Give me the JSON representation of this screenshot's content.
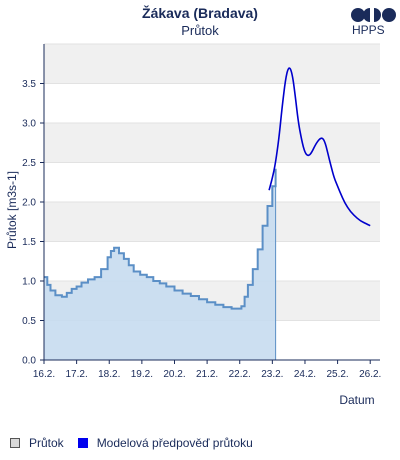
{
  "header": {
    "title": "Žákava (Bradava)",
    "subtitle": "Průtok",
    "logo_text": "HPPS"
  },
  "legend": {
    "observed_label": "Průtok",
    "forecast_label": "Modelová předpověď průtoku"
  },
  "colors": {
    "observed_line": "#5b8fc6",
    "observed_fill": "#c6dcf0",
    "forecast_line": "#0000cc",
    "band": "#f0f0f0",
    "axis_text": "#1a2b5a"
  },
  "chart_data": {
    "type": "area",
    "title": "Žákava (Bradava)",
    "subtitle": "Průtok",
    "xlabel": "Datum",
    "ylabel": "Průtok [m3s-1]",
    "ylim": [
      0,
      4.0
    ],
    "xlim": [
      0,
      10.3
    ],
    "x_tick_labels": [
      "16.2.",
      "17.2.",
      "18.2.",
      "19.2.",
      "20.2.",
      "21.2.",
      "22.2.",
      "23.2.",
      "24.2.",
      "25.2.",
      "26.2."
    ],
    "y_tick_labels": [
      "0.0",
      "0.5",
      "1.0",
      "1.5",
      "2.0",
      "2.5",
      "3.0",
      "3.5"
    ],
    "grid": true,
    "alternating_bands": true,
    "series": [
      {
        "name": "Průtok",
        "x_unit": "days since 16.2.",
        "x": [
          0.0,
          0.1,
          0.2,
          0.35,
          0.55,
          0.7,
          0.85,
          1.0,
          1.15,
          1.35,
          1.55,
          1.75,
          1.95,
          2.05,
          2.15,
          2.3,
          2.45,
          2.6,
          2.75,
          2.95,
          3.15,
          3.35,
          3.55,
          3.75,
          4.0,
          4.25,
          4.5,
          4.75,
          5.0,
          5.25,
          5.5,
          5.75,
          5.95,
          6.05,
          6.15,
          6.25,
          6.4,
          6.55,
          6.7,
          6.85,
          7.0,
          7.1
        ],
        "values": [
          1.05,
          0.95,
          0.88,
          0.82,
          0.8,
          0.85,
          0.9,
          0.93,
          0.98,
          1.02,
          1.05,
          1.15,
          1.3,
          1.38,
          1.42,
          1.35,
          1.28,
          1.2,
          1.12,
          1.08,
          1.05,
          1.0,
          0.97,
          0.93,
          0.88,
          0.84,
          0.81,
          0.77,
          0.73,
          0.7,
          0.67,
          0.65,
          0.65,
          0.68,
          0.8,
          0.95,
          1.15,
          1.4,
          1.7,
          1.95,
          2.2,
          2.42
        ]
      },
      {
        "name": "Modelová předpověď průtoku",
        "x_unit": "days since 16.2.",
        "x": [
          6.9,
          7.0,
          7.1,
          7.2,
          7.3,
          7.4,
          7.5,
          7.6,
          7.7,
          7.8,
          7.9,
          8.0,
          8.1,
          8.2,
          8.35,
          8.5,
          8.6,
          8.7,
          8.8,
          8.9,
          9.0,
          9.15,
          9.3,
          9.5,
          9.7,
          9.9,
          10.0
        ],
        "values": [
          2.15,
          2.3,
          2.5,
          2.8,
          3.2,
          3.55,
          3.72,
          3.65,
          3.35,
          3.0,
          2.78,
          2.62,
          2.58,
          2.62,
          2.75,
          2.82,
          2.78,
          2.62,
          2.45,
          2.3,
          2.2,
          2.05,
          1.93,
          1.83,
          1.76,
          1.72,
          1.7
        ]
      }
    ]
  }
}
